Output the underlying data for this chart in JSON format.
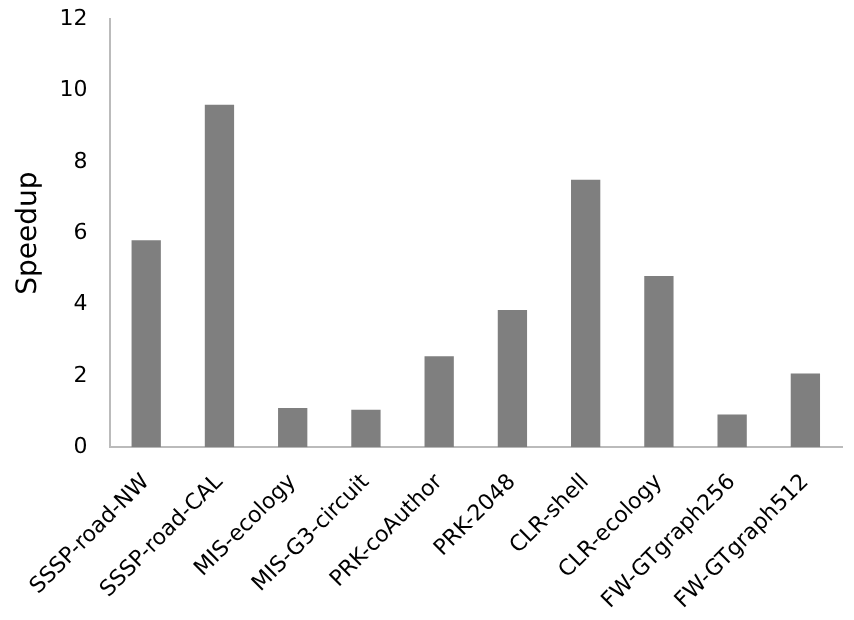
{
  "chart_data": {
    "type": "bar",
    "ylabel": "Speedup",
    "categories": [
      "SSSP-road-NW",
      "SSSP-road-CAL",
      "MIS-ecology",
      "MIS-G3-circuit",
      "PRK-coAuthor",
      "PRK-2048",
      "CLR-shell",
      "CLR-ecology",
      "FW-GTgraph256",
      "FW-GTgraph512"
    ],
    "values": [
      5.8,
      9.6,
      1.1,
      1.05,
      2.55,
      3.85,
      7.5,
      4.8,
      0.92,
      2.07
    ],
    "color": "#7f7f7f",
    "ylim": [
      0,
      12
    ],
    "yticks": [
      0,
      2,
      4,
      6,
      8,
      10,
      12
    ],
    "grid": false,
    "legend": false
  }
}
